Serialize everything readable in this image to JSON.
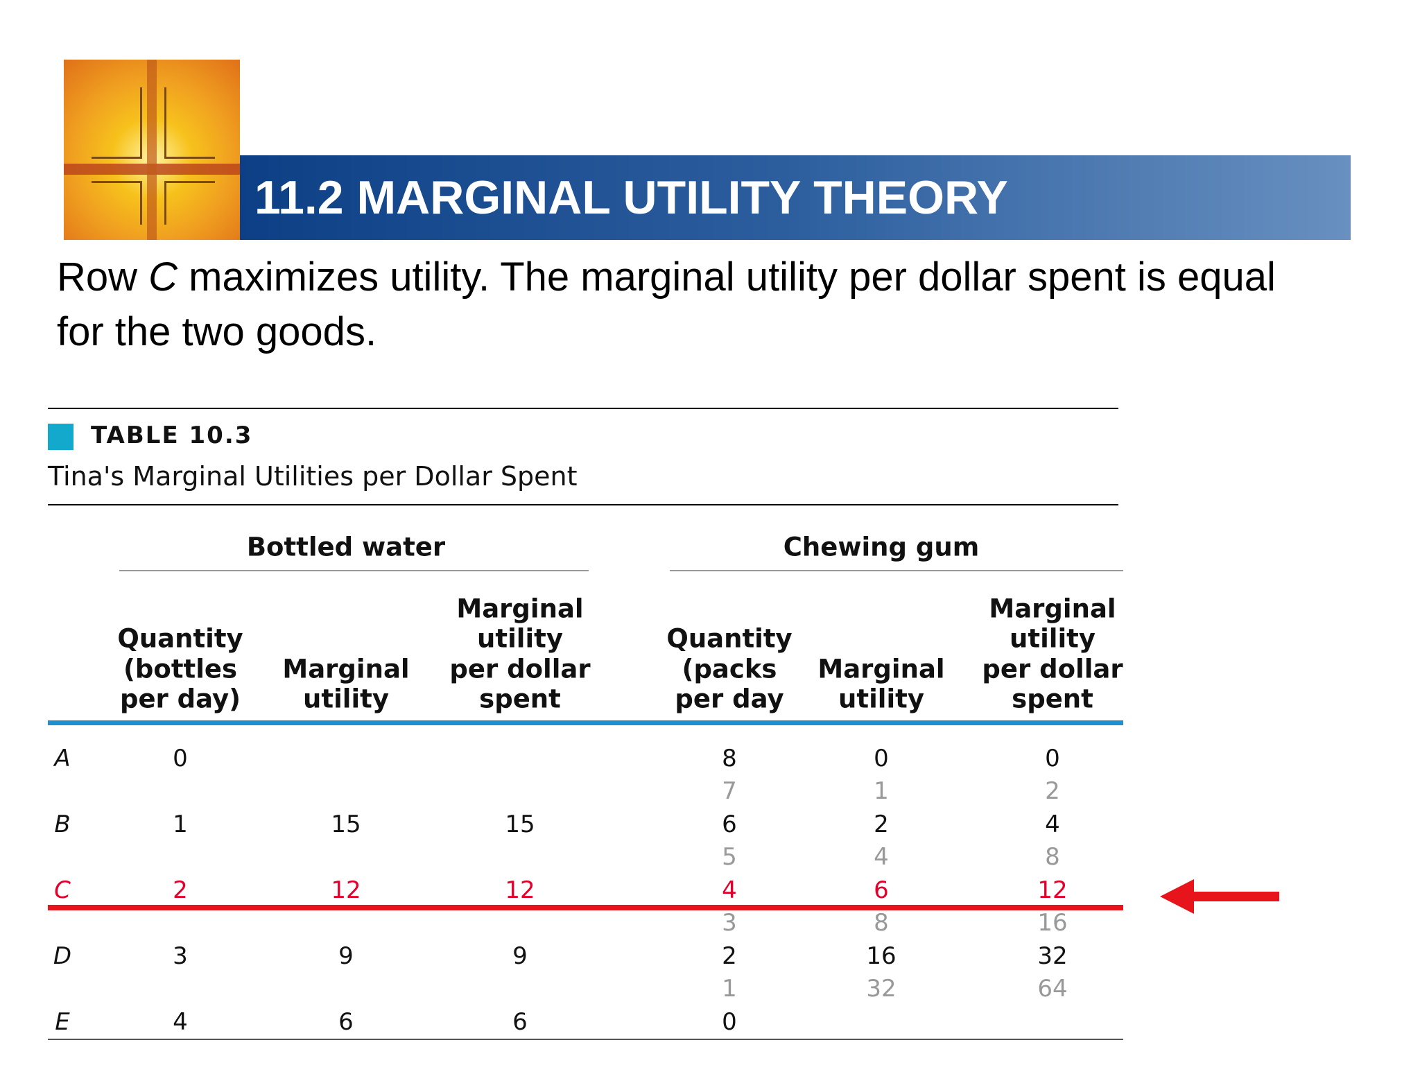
{
  "header": {
    "title": "11.2 MARGINAL UTILITY THEORY"
  },
  "body": {
    "parts": [
      "Row ",
      "C",
      " maximizes utility. The marginal utility per dollar spent is equal for the two goods."
    ]
  },
  "table": {
    "label": "TABLE 10.3",
    "caption": "Tina's Marginal Utilities per Dollar Spent",
    "groups": [
      "Bottled water",
      "Chewing gum"
    ],
    "columns": [
      [
        "Quantity",
        "(bottles",
        "per day)"
      ],
      [
        "Marginal",
        "utility"
      ],
      [
        "Marginal",
        "utility",
        "per dollar",
        "spent"
      ],
      [
        "Quantity",
        "(packs",
        "per day"
      ],
      [
        "Marginal",
        "utility"
      ],
      [
        "Marginal",
        "utility",
        "per dollar",
        "spent"
      ]
    ],
    "rows": [
      {
        "label": "A",
        "q_water": 0,
        "q_gum": 8,
        "mu_gum": 0,
        "mupd_gum": 0
      },
      {
        "q_gum": 7,
        "mu_gum": 1,
        "mupd_gum": 2
      },
      {
        "label": "B",
        "q_water": 1,
        "mu_water": 15,
        "mupd_water": 15,
        "q_gum": 6,
        "mu_gum": 2,
        "mupd_gum": 4
      },
      {
        "q_gum": 5,
        "mu_gum": 4,
        "mupd_gum": 8
      },
      {
        "label": "C",
        "highlight": true,
        "q_water": 2,
        "mu_water": 12,
        "mupd_water": 12,
        "q_gum": 4,
        "mu_gum": 6,
        "mupd_gum": 12
      },
      {
        "q_gum": 3,
        "mu_gum": 8,
        "mupd_gum": 16
      },
      {
        "label": "D",
        "q_water": 3,
        "mu_water": 9,
        "mupd_water": 9,
        "q_gum": 2,
        "mu_gum": 16,
        "mupd_gum": 32
      },
      {
        "q_gum": 1,
        "mu_gum": 32,
        "mupd_gum": 64
      },
      {
        "label": "E",
        "q_water": 4,
        "mu_water": 6,
        "mupd_water": 6,
        "q_gum": 0
      }
    ]
  }
}
